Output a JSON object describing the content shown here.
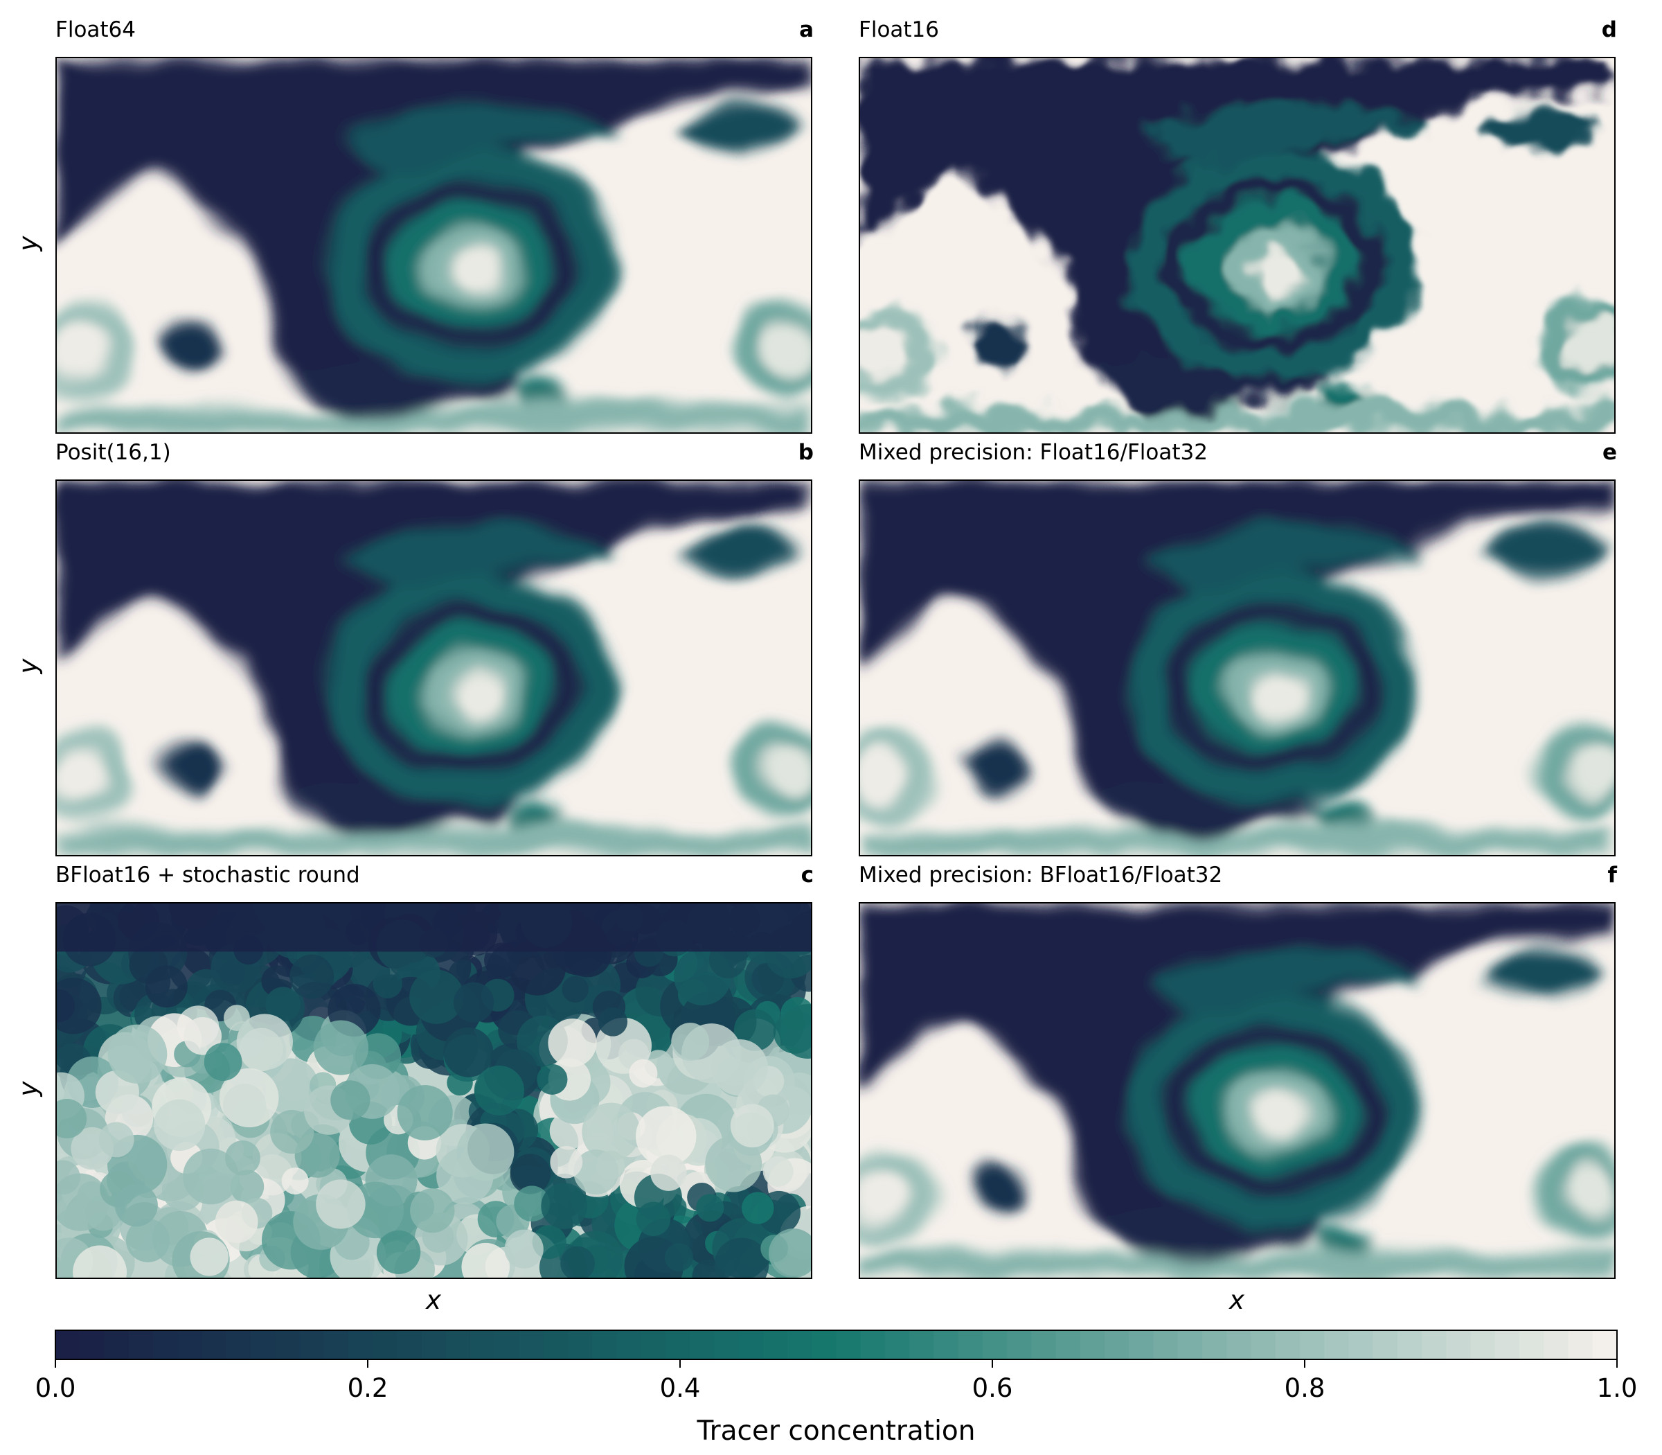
{
  "panels": [
    {
      "id": "a",
      "title": "Float64",
      "letter": "a"
    },
    {
      "id": "b",
      "title": "Posit(16,1)",
      "letter": "b"
    },
    {
      "id": "c",
      "title": "BFloat16 + stochastic round",
      "letter": "c"
    },
    {
      "id": "d",
      "title": "Float16",
      "letter": "d"
    },
    {
      "id": "e",
      "title": "Mixed precision: Float16/Float32",
      "letter": "e"
    },
    {
      "id": "f",
      "title": "Mixed precision: BFloat16/Float32",
      "letter": "f"
    }
  ],
  "axes": {
    "xlabel": "x",
    "ylabel": "y"
  },
  "colormap": {
    "low": "#1a1f45",
    "mid": "#16786e",
    "high": "#f7f1ec"
  },
  "chart_data": {
    "type": "heatmap",
    "field": "tracer concentration",
    "colorbar": {
      "label": "Tracer concentration",
      "range": [
        0.0,
        1.0
      ],
      "ticks": [
        "0.0",
        "0.2",
        "0.4",
        "0.6",
        "0.8",
        "1.0"
      ]
    }
  }
}
